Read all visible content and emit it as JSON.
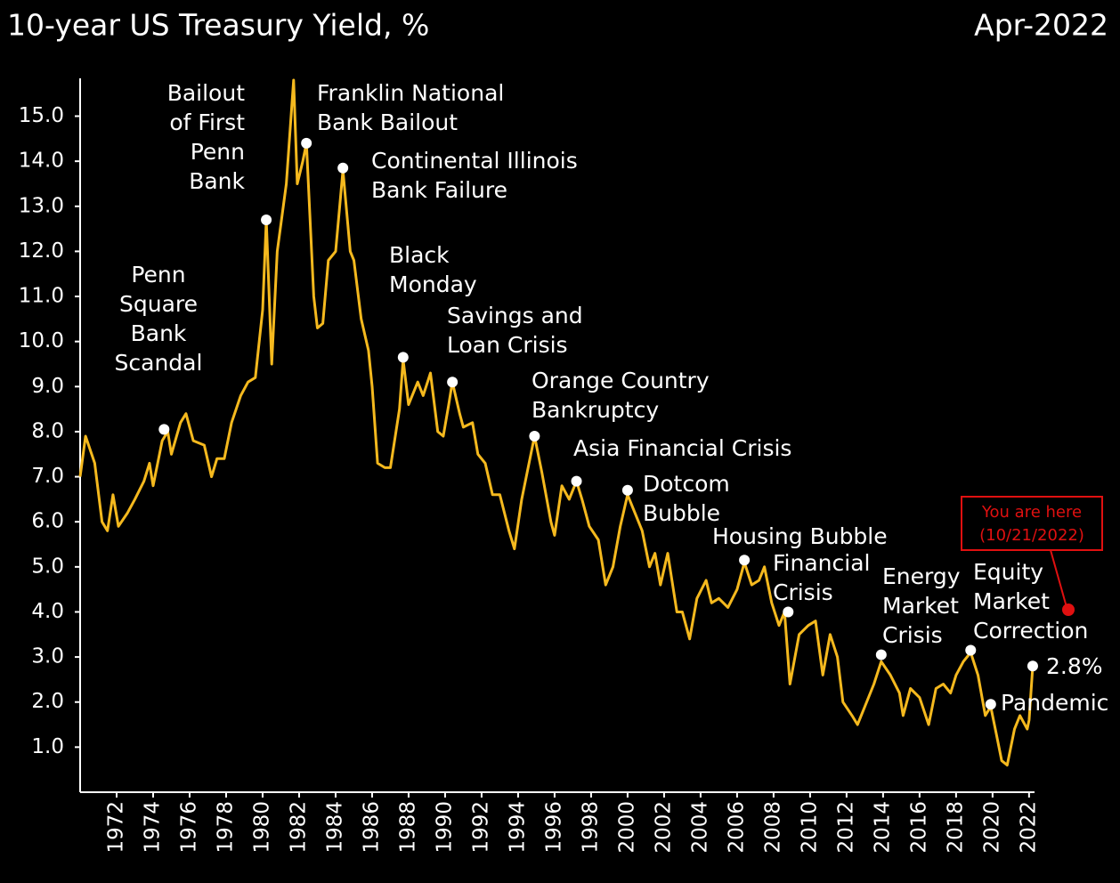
{
  "chart_data": {
    "type": "line",
    "title": "10-year US Treasury Yield, %",
    "subtitle": "Apr-2022",
    "x": [
      1970.0,
      1970.3,
      1970.8,
      1971.2,
      1971.5,
      1971.8,
      1972.1,
      1972.6,
      1973.0,
      1973.5,
      1973.8,
      1974.0,
      1974.5,
      1974.8,
      1975.0,
      1975.5,
      1975.8,
      1976.2,
      1976.8,
      1977.2,
      1977.5,
      1977.9,
      1978.3,
      1978.8,
      1979.2,
      1979.6,
      1980.0,
      1980.2,
      1980.5,
      1980.8,
      1981.0,
      1981.3,
      1981.7,
      1981.9,
      1982.2,
      1982.4,
      1982.8,
      1983.0,
      1983.3,
      1983.6,
      1984.0,
      1984.4,
      1984.8,
      1985.0,
      1985.4,
      1985.8,
      1986.0,
      1986.3,
      1986.7,
      1987.0,
      1987.5,
      1987.7,
      1988.0,
      1988.5,
      1988.8,
      1989.2,
      1989.6,
      1989.9,
      1990.2,
      1990.4,
      1990.8,
      1991.0,
      1991.5,
      1991.8,
      1992.2,
      1992.6,
      1993.0,
      1993.5,
      1993.8,
      1994.2,
      1994.6,
      1994.9,
      1995.3,
      1995.8,
      1996.0,
      1996.4,
      1996.8,
      1997.2,
      1997.5,
      1997.9,
      1998.4,
      1998.8,
      1999.2,
      1999.6,
      2000.0,
      2000.4,
      2000.8,
      2001.2,
      2001.5,
      2001.8,
      2002.2,
      2002.7,
      2003.0,
      2003.4,
      2003.8,
      2004.3,
      2004.6,
      2005.0,
      2005.5,
      2006.0,
      2006.4,
      2006.8,
      2007.2,
      2007.5,
      2007.9,
      2008.3,
      2008.6,
      2008.9,
      2009.4,
      2009.9,
      2010.3,
      2010.7,
      2011.1,
      2011.5,
      2011.8,
      2012.3,
      2012.6,
      2013.0,
      2013.5,
      2013.9,
      2014.4,
      2014.9,
      2015.1,
      2015.5,
      2016.0,
      2016.5,
      2016.9,
      2017.3,
      2017.7,
      2018.0,
      2018.4,
      2018.8,
      2019.2,
      2019.6,
      2019.9,
      2020.2,
      2020.5,
      2020.8,
      2021.2,
      2021.5,
      2021.9,
      2022.0,
      2022.2
    ],
    "series": [
      {
        "name": "10-year US Treasury Yield",
        "color": "#f5b91e",
        "values": [
          7.0,
          7.9,
          7.3,
          6.0,
          5.8,
          6.6,
          5.9,
          6.2,
          6.5,
          6.9,
          7.3,
          6.8,
          7.8,
          8.0,
          7.5,
          8.2,
          8.4,
          7.8,
          7.7,
          7.0,
          7.4,
          7.4,
          8.2,
          8.8,
          9.1,
          9.2,
          10.7,
          12.7,
          9.5,
          12.0,
          12.6,
          13.5,
          15.8,
          13.5,
          14.0,
          14.4,
          11.0,
          10.3,
          10.4,
          11.8,
          12.0,
          13.8,
          12.0,
          11.8,
          10.5,
          9.8,
          9.0,
          7.3,
          7.2,
          7.2,
          8.5,
          9.6,
          8.6,
          9.1,
          8.8,
          9.3,
          8.0,
          7.9,
          8.6,
          9.1,
          8.4,
          8.1,
          8.2,
          7.5,
          7.3,
          6.6,
          6.6,
          5.8,
          5.4,
          6.5,
          7.3,
          7.9,
          7.1,
          6.0,
          5.7,
          6.8,
          6.5,
          6.9,
          6.5,
          5.9,
          5.6,
          4.6,
          5.0,
          5.9,
          6.6,
          6.2,
          5.8,
          5.0,
          5.3,
          4.6,
          5.3,
          4.0,
          4.0,
          3.4,
          4.3,
          4.7,
          4.2,
          4.3,
          4.1,
          4.5,
          5.1,
          4.6,
          4.7,
          5.0,
          4.2,
          3.7,
          4.0,
          2.4,
          3.5,
          3.7,
          3.8,
          2.6,
          3.5,
          3.0,
          2.0,
          1.7,
          1.5,
          1.9,
          2.4,
          2.9,
          2.6,
          2.2,
          1.7,
          2.3,
          2.1,
          1.5,
          2.3,
          2.4,
          2.2,
          2.6,
          2.9,
          3.1,
          2.6,
          1.7,
          1.9,
          1.3,
          0.7,
          0.6,
          1.4,
          1.7,
          1.4,
          1.6,
          2.8
        ]
      }
    ],
    "xlim": [
      1970,
      2022.3
    ],
    "ylim": [
      0,
      15.8
    ],
    "xticks": [
      1972,
      1974,
      1976,
      1978,
      1980,
      1982,
      1984,
      1986,
      1988,
      1990,
      1992,
      1994,
      1996,
      1998,
      2000,
      2002,
      2004,
      2006,
      2008,
      2010,
      2012,
      2014,
      2016,
      2018,
      2020,
      2022
    ],
    "yticks": [
      {
        "value": 1,
        "label": "1.0"
      },
      {
        "value": 2,
        "label": "2.0"
      },
      {
        "value": 3,
        "label": "3.0"
      },
      {
        "value": 4,
        "label": "4.0"
      },
      {
        "value": 5,
        "label": "5.0"
      },
      {
        "value": 6,
        "label": "6.0"
      },
      {
        "value": 7,
        "label": "7.0"
      },
      {
        "value": 8,
        "label": "8.0"
      },
      {
        "value": 9,
        "label": "9.0"
      },
      {
        "value": 10,
        "label": "10.0"
      },
      {
        "value": 11,
        "label": "11.0"
      },
      {
        "value": 12,
        "label": "12.0"
      },
      {
        "value": 13,
        "label": "13.0"
      },
      {
        "value": 14,
        "label": "14.0"
      },
      {
        "value": 15,
        "label": "15.0"
      }
    ],
    "annotations": [
      {
        "x": 1974.6,
        "y": 8.05,
        "lines": [
          "Penn",
          "Square",
          "Bank",
          "Scandal"
        ]
      },
      {
        "x": 1980.2,
        "y": 12.7,
        "lines": [
          "Bailout",
          "of First",
          "Penn",
          "Bank"
        ]
      },
      {
        "x": 1982.4,
        "y": 14.4,
        "lines": [
          "Franklin National",
          "Bank Bailout"
        ]
      },
      {
        "x": 1984.4,
        "y": 13.85,
        "lines": [
          "Continental Illinois",
          "Bank Failure"
        ]
      },
      {
        "x": 1987.7,
        "y": 9.65,
        "lines": [
          "Black",
          "Monday"
        ]
      },
      {
        "x": 1990.4,
        "y": 9.1,
        "lines": [
          "Savings and",
          "Loan Crisis"
        ]
      },
      {
        "x": 1994.9,
        "y": 7.9,
        "lines": [
          "Orange Country",
          "Bankruptcy"
        ]
      },
      {
        "x": 1997.2,
        "y": 6.9,
        "lines": [
          "Asia Financial Crisis"
        ]
      },
      {
        "x": 2000.0,
        "y": 6.7,
        "lines": [
          "Dotcom",
          "Bubble"
        ]
      },
      {
        "x": 2006.4,
        "y": 5.15,
        "lines": [
          "Housing Bubble"
        ]
      },
      {
        "x": 2008.8,
        "y": 4.0,
        "lines": [
          "Financial",
          "Crisis"
        ]
      },
      {
        "x": 2013.9,
        "y": 3.05,
        "lines": [
          "Energy",
          "Market",
          "Crisis"
        ]
      },
      {
        "x": 2018.8,
        "y": 3.15,
        "lines": [
          "Equity",
          "Market",
          "Correction"
        ]
      },
      {
        "x": 2019.9,
        "y": 1.95,
        "lines": [
          "Pandemic"
        ]
      },
      {
        "x": 2022.2,
        "y": 2.8,
        "lines": [
          "2.8%"
        ]
      }
    ],
    "callout": [
      "You are here",
      "(10/21/2022)"
    ]
  }
}
